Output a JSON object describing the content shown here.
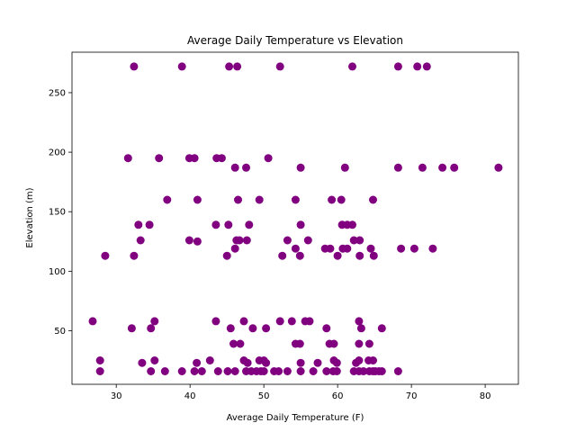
{
  "chart_data": {
    "type": "scatter",
    "title": "Average Daily Temperature vs Elevation",
    "xlabel": "Average Daily Temperature (F)",
    "ylabel": "Elevation (m)",
    "xlim": [
      24,
      84.5
    ],
    "ylim": [
      5,
      284
    ],
    "xticks": [
      30,
      40,
      50,
      60,
      70,
      80
    ],
    "yticks": [
      50,
      100,
      150,
      200,
      250
    ],
    "grid": false,
    "marker_color": "#800080",
    "points": [
      [
        32.4,
        272
      ],
      [
        38.9,
        272
      ],
      [
        45.3,
        272
      ],
      [
        46.4,
        272
      ],
      [
        52.2,
        272
      ],
      [
        62.0,
        272
      ],
      [
        68.2,
        272
      ],
      [
        70.8,
        272
      ],
      [
        72.1,
        272
      ],
      [
        31.6,
        195
      ],
      [
        35.8,
        195
      ],
      [
        39.9,
        195
      ],
      [
        40.6,
        195
      ],
      [
        43.6,
        195
      ],
      [
        44.3,
        195
      ],
      [
        50.6,
        195
      ],
      [
        46.1,
        187
      ],
      [
        47.6,
        187
      ],
      [
        55.0,
        187
      ],
      [
        61.0,
        187
      ],
      [
        68.2,
        187
      ],
      [
        71.5,
        187
      ],
      [
        74.2,
        187
      ],
      [
        75.8,
        187
      ],
      [
        81.8,
        187
      ],
      [
        36.9,
        160
      ],
      [
        41.0,
        160
      ],
      [
        46.5,
        160
      ],
      [
        49.4,
        160
      ],
      [
        54.3,
        160
      ],
      [
        59.2,
        160
      ],
      [
        60.5,
        160
      ],
      [
        64.8,
        160
      ],
      [
        33.0,
        139
      ],
      [
        34.5,
        139
      ],
      [
        43.5,
        139
      ],
      [
        45.2,
        139
      ],
      [
        48.0,
        139
      ],
      [
        55.0,
        139
      ],
      [
        60.6,
        139
      ],
      [
        61.3,
        139
      ],
      [
        62.0,
        139
      ],
      [
        33.3,
        126
      ],
      [
        39.9,
        126
      ],
      [
        41.0,
        125
      ],
      [
        46.3,
        126
      ],
      [
        46.7,
        126
      ],
      [
        47.7,
        126
      ],
      [
        53.2,
        126
      ],
      [
        56.0,
        126
      ],
      [
        62.2,
        126
      ],
      [
        63.0,
        126
      ],
      [
        28.5,
        113
      ],
      [
        32.4,
        113
      ],
      [
        45.0,
        113
      ],
      [
        46.1,
        119
      ],
      [
        52.5,
        113
      ],
      [
        54.3,
        119
      ],
      [
        54.9,
        113
      ],
      [
        58.3,
        119
      ],
      [
        59.0,
        119
      ],
      [
        60.0,
        113
      ],
      [
        60.7,
        119
      ],
      [
        61.3,
        119
      ],
      [
        63.0,
        113
      ],
      [
        64.5,
        119
      ],
      [
        64.9,
        113
      ],
      [
        68.6,
        119
      ],
      [
        70.4,
        119
      ],
      [
        72.9,
        119
      ],
      [
        26.8,
        58
      ],
      [
        32.1,
        52
      ],
      [
        34.7,
        52
      ],
      [
        35.2,
        58
      ],
      [
        43.5,
        58
      ],
      [
        45.5,
        52
      ],
      [
        47.3,
        58
      ],
      [
        48.5,
        52
      ],
      [
        50.3,
        52
      ],
      [
        52.2,
        58
      ],
      [
        53.8,
        58
      ],
      [
        55.6,
        58
      ],
      [
        56.2,
        58
      ],
      [
        58.5,
        52
      ],
      [
        62.9,
        58
      ],
      [
        63.2,
        52
      ],
      [
        66.0,
        52
      ],
      [
        45.9,
        39
      ],
      [
        46.8,
        39
      ],
      [
        54.3,
        39
      ],
      [
        54.9,
        39
      ],
      [
        58.9,
        39
      ],
      [
        59.5,
        39
      ],
      [
        62.9,
        39
      ],
      [
        64.3,
        39
      ],
      [
        27.8,
        25
      ],
      [
        33.5,
        23
      ],
      [
        35.2,
        25
      ],
      [
        40.9,
        23
      ],
      [
        42.7,
        25
      ],
      [
        47.3,
        25
      ],
      [
        47.8,
        23
      ],
      [
        49.4,
        25
      ],
      [
        50.0,
        25
      ],
      [
        50.3,
        23
      ],
      [
        55.0,
        23
      ],
      [
        57.3,
        23
      ],
      [
        59.5,
        25
      ],
      [
        59.9,
        23
      ],
      [
        62.5,
        23
      ],
      [
        62.9,
        25
      ],
      [
        64.2,
        25
      ],
      [
        64.8,
        25
      ],
      [
        27.8,
        16
      ],
      [
        34.7,
        16
      ],
      [
        36.6,
        16
      ],
      [
        38.9,
        16
      ],
      [
        40.6,
        16
      ],
      [
        41.6,
        16
      ],
      [
        43.8,
        16
      ],
      [
        45.1,
        16
      ],
      [
        46.1,
        16
      ],
      [
        47.6,
        16
      ],
      [
        48.3,
        16
      ],
      [
        49.0,
        16
      ],
      [
        49.6,
        16
      ],
      [
        50.0,
        16
      ],
      [
        51.4,
        16
      ],
      [
        52.0,
        16
      ],
      [
        53.2,
        16
      ],
      [
        55.0,
        16
      ],
      [
        56.7,
        16
      ],
      [
        58.5,
        16
      ],
      [
        59.4,
        16
      ],
      [
        59.9,
        16
      ],
      [
        62.2,
        16
      ],
      [
        62.9,
        16
      ],
      [
        63.5,
        16
      ],
      [
        64.3,
        16
      ],
      [
        64.8,
        16
      ],
      [
        65.1,
        16
      ],
      [
        65.6,
        16
      ],
      [
        66.0,
        16
      ],
      [
        68.2,
        16
      ]
    ]
  }
}
